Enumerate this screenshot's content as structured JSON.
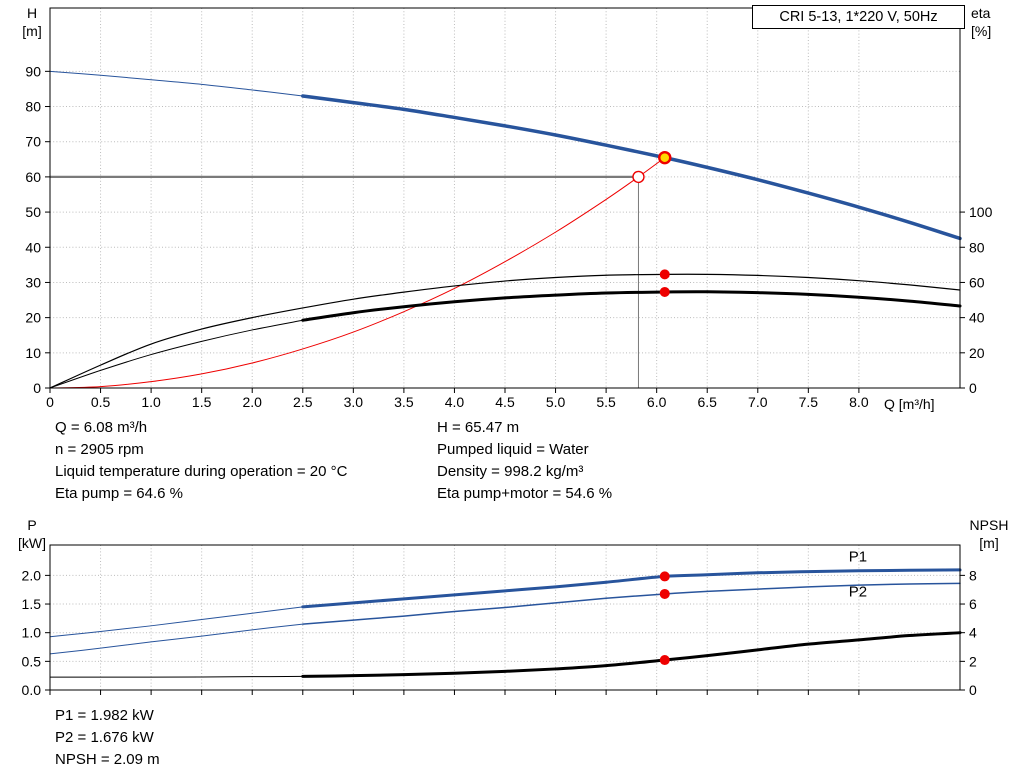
{
  "colors": {
    "blue": "#28549c",
    "red": "#ee0000",
    "yellow": "#ffd800",
    "grid": "#bcbcbc",
    "guide": "#7a7a7a",
    "axis": "#000000"
  },
  "chart_data": [
    {
      "type": "line",
      "title": "CRI 5-13, 1*220 V, 50Hz",
      "xlabel": "Q [m³/h]",
      "x": {
        "min": 0,
        "max": 9,
        "tick_values": [
          0,
          0.5,
          1,
          1.5,
          2,
          2.5,
          3,
          3.5,
          4,
          4.5,
          5,
          5.5,
          6,
          6.5,
          7,
          7.5,
          8
        ],
        "tick_labels": [
          "0",
          "0.5",
          "1.0",
          "1.5",
          "2.0",
          "2.5",
          "3.0",
          "3.5",
          "4.0",
          "4.5",
          "5.0",
          "5.5",
          "6.0",
          "6.5",
          "7.0",
          "7.5",
          "8.0"
        ]
      },
      "left_axis": {
        "label_top": "H",
        "label_unit": "[m]",
        "min": 0,
        "max": 108,
        "tick_values": [
          0,
          10,
          20,
          30,
          40,
          50,
          60,
          70,
          80,
          90
        ],
        "tick_labels": [
          "0",
          "10",
          "20",
          "30",
          "40",
          "50",
          "60",
          "70",
          "80",
          "90"
        ]
      },
      "right_axis": {
        "label_top": "eta",
        "label_unit": "[%]",
        "factor": 0.5,
        "tick_values": [
          0,
          20,
          40,
          60,
          80,
          100
        ],
        "tick_labels": [
          "0",
          "20",
          "40",
          "60",
          "80",
          "100"
        ]
      },
      "guides": [
        {
          "type": "hline",
          "y": 60,
          "x0": 0,
          "x1": 5.82
        },
        {
          "type": "vline",
          "x": 5.82,
          "y0": 0,
          "y1": 60
        }
      ],
      "series": [
        {
          "name": "qh-extension",
          "color": "#28549c",
          "width": 1,
          "axis": "left",
          "points": [
            [
              0,
              90
            ],
            [
              0.5,
              88.9
            ],
            [
              1,
              87.6
            ],
            [
              1.5,
              86.3
            ],
            [
              2,
              84.7
            ],
            [
              2.5,
              83
            ]
          ]
        },
        {
          "name": "qh-curve",
          "color": "#28549c",
          "width": 3.5,
          "axis": "left",
          "points": [
            [
              2.5,
              83
            ],
            [
              3,
              81.1
            ],
            [
              3.5,
              79.2
            ],
            [
              4,
              76.9
            ],
            [
              4.5,
              74.5
            ],
            [
              5,
              71.9
            ],
            [
              5.5,
              69
            ],
            [
              6.08,
              65.47
            ],
            [
              6.5,
              62.7
            ],
            [
              7,
              59.2
            ],
            [
              7.5,
              55.4
            ],
            [
              8,
              51.4
            ],
            [
              8.5,
              47.1
            ],
            [
              9,
              42.5
            ]
          ]
        },
        {
          "name": "system-curve",
          "color": "#ee0000",
          "width": 1,
          "axis": "left",
          "points": [
            [
              0,
              0
            ],
            [
              0.5,
              0.4
            ],
            [
              1,
              1.8
            ],
            [
              1.5,
              4
            ],
            [
              2,
              7.1
            ],
            [
              2.5,
              11.1
            ],
            [
              3,
              15.9
            ],
            [
              3.5,
              21.7
            ],
            [
              4,
              28.3
            ],
            [
              4.5,
              35.9
            ],
            [
              5,
              44.3
            ],
            [
              5.5,
              53.6
            ],
            [
              5.82,
              60
            ],
            [
              6.08,
              65.47
            ]
          ]
        },
        {
          "name": "eta-pump-curve",
          "color": "#000000",
          "width": 1.2,
          "axis": "right",
          "points": [
            [
              0,
              0
            ],
            [
              0.5,
              13
            ],
            [
              1,
              25
            ],
            [
              1.5,
              33.5
            ],
            [
              2,
              40
            ],
            [
              2.5,
              45.5
            ],
            [
              3,
              50.5
            ],
            [
              3.5,
              54.5
            ],
            [
              4,
              58
            ],
            [
              4.5,
              60.8
            ],
            [
              5,
              62.8
            ],
            [
              5.5,
              64.1
            ],
            [
              6.08,
              64.6
            ],
            [
              6.5,
              64.6
            ],
            [
              7,
              64
            ],
            [
              7.5,
              62.8
            ],
            [
              8,
              61
            ],
            [
              8.5,
              58.6
            ],
            [
              9,
              55.7
            ]
          ]
        },
        {
          "name": "eta-pump-motor-extension",
          "color": "#000000",
          "width": 1,
          "axis": "right",
          "points": [
            [
              0,
              0
            ],
            [
              0.5,
              10
            ],
            [
              1,
              19
            ],
            [
              1.5,
              26.5
            ],
            [
              2,
              33
            ],
            [
              2.5,
              38.5
            ]
          ]
        },
        {
          "name": "eta-pump-motor-curve",
          "color": "#000000",
          "width": 3,
          "axis": "right",
          "points": [
            [
              2.5,
              38.5
            ],
            [
              3,
              42.8
            ],
            [
              3.5,
              46.2
            ],
            [
              4,
              49
            ],
            [
              4.5,
              51.2
            ],
            [
              5,
              52.8
            ],
            [
              5.5,
              54
            ],
            [
              6.08,
              54.6
            ],
            [
              6.5,
              54.7
            ],
            [
              7,
              54.2
            ],
            [
              7.5,
              53.2
            ],
            [
              8,
              51.6
            ],
            [
              8.5,
              49.4
            ],
            [
              9,
              46.6
            ]
          ]
        }
      ],
      "markers": [
        {
          "name": "requested-duty-marker",
          "x": 5.82,
          "y": 60,
          "axis": "left",
          "r": 5.5,
          "fill": "#ffffff",
          "stroke": "#ee0000",
          "sw": 1.4
        },
        {
          "name": "eta-pump-duty-marker",
          "x": 6.08,
          "y": 64.6,
          "axis": "right",
          "r": 4.5,
          "fill": "#ee0000",
          "stroke": "#ee0000",
          "sw": 1
        },
        {
          "name": "eta-pump-motor-duty-marker",
          "x": 6.08,
          "y": 54.6,
          "axis": "right",
          "r": 4.5,
          "fill": "#ee0000",
          "stroke": "#ee0000",
          "sw": 1
        },
        {
          "name": "duty-point-marker",
          "x": 6.08,
          "y": 65.47,
          "axis": "left",
          "r": 5.5,
          "fill": "#ffd800",
          "stroke": "#ee0000",
          "sw": 2.4
        }
      ],
      "labels": []
    },
    {
      "type": "line",
      "title": "",
      "xlabel": "",
      "x": {
        "min": 0,
        "max": 9,
        "tick_values": [
          0,
          0.5,
          1,
          1.5,
          2,
          2.5,
          3,
          3.5,
          4,
          4.5,
          5,
          5.5,
          6,
          6.5,
          7,
          7.5,
          8
        ],
        "tick_labels": []
      },
      "left_axis": {
        "label_top": "P",
        "label_unit": "[kW]",
        "min": 0,
        "max": 2.53,
        "tick_values": [
          0,
          0.5,
          1,
          1.5,
          2
        ],
        "tick_labels": [
          "0.0",
          "0.5",
          "1.0",
          "1.5",
          "2.0"
        ]
      },
      "right_axis": {
        "label_top": "NPSH",
        "label_unit": "[m]",
        "factor": 0.25,
        "tick_values": [
          0,
          2,
          4,
          6,
          8
        ],
        "tick_labels": [
          "0",
          "2",
          "4",
          "6",
          "8"
        ]
      },
      "guides": [],
      "series": [
        {
          "name": "p1-extension",
          "color": "#28549c",
          "width": 1,
          "axis": "left",
          "points": [
            [
              0,
              0.93
            ],
            [
              0.5,
              1.02
            ],
            [
              1,
              1.12
            ],
            [
              1.5,
              1.23
            ],
            [
              2,
              1.34
            ],
            [
              2.5,
              1.45
            ]
          ]
        },
        {
          "name": "p1-curve",
          "color": "#28549c",
          "width": 3,
          "axis": "left",
          "points": [
            [
              2.5,
              1.45
            ],
            [
              3,
              1.52
            ],
            [
              3.5,
              1.59
            ],
            [
              4,
              1.66
            ],
            [
              4.5,
              1.73
            ],
            [
              5,
              1.8
            ],
            [
              5.5,
              1.88
            ],
            [
              6.08,
              1.982
            ],
            [
              6.5,
              2.01
            ],
            [
              7,
              2.045
            ],
            [
              7.5,
              2.065
            ],
            [
              8,
              2.08
            ],
            [
              8.5,
              2.09
            ],
            [
              9,
              2.095
            ]
          ]
        },
        {
          "name": "p2-extension",
          "color": "#28549c",
          "width": 1,
          "axis": "left",
          "points": [
            [
              0,
              0.63
            ],
            [
              0.5,
              0.73
            ],
            [
              1,
              0.84
            ],
            [
              1.5,
              0.94
            ],
            [
              2,
              1.05
            ],
            [
              2.5,
              1.15
            ]
          ]
        },
        {
          "name": "p2-curve",
          "color": "#28549c",
          "width": 1.5,
          "axis": "left",
          "points": [
            [
              2.5,
              1.15
            ],
            [
              3,
              1.22
            ],
            [
              3.5,
              1.29
            ],
            [
              4,
              1.37
            ],
            [
              4.5,
              1.44
            ],
            [
              5,
              1.52
            ],
            [
              5.5,
              1.6
            ],
            [
              6.08,
              1.676
            ],
            [
              6.5,
              1.72
            ],
            [
              7,
              1.76
            ],
            [
              7.5,
              1.8
            ],
            [
              8,
              1.83
            ],
            [
              8.5,
              1.85
            ],
            [
              9,
              1.86
            ]
          ]
        },
        {
          "name": "npsh-extension",
          "color": "#000000",
          "width": 1,
          "axis": "right",
          "points": [
            [
              0,
              0.9
            ],
            [
              0.5,
              0.9
            ],
            [
              1,
              0.9
            ],
            [
              1.5,
              0.91
            ],
            [
              2,
              0.93
            ],
            [
              2.5,
              0.95
            ]
          ]
        },
        {
          "name": "npsh-curve",
          "color": "#000000",
          "width": 3,
          "axis": "right",
          "points": [
            [
              2.5,
              0.95
            ],
            [
              3,
              1
            ],
            [
              3.5,
              1.07
            ],
            [
              4,
              1.17
            ],
            [
              4.5,
              1.3
            ],
            [
              5,
              1.47
            ],
            [
              5.5,
              1.7
            ],
            [
              6.08,
              2.09
            ],
            [
              6.5,
              2.4
            ],
            [
              7,
              2.8
            ],
            [
              7.5,
              3.2
            ],
            [
              8,
              3.5
            ],
            [
              8.5,
              3.8
            ],
            [
              9,
              4
            ]
          ]
        }
      ],
      "markers": [
        {
          "name": "p1-duty-marker",
          "x": 6.08,
          "y": 1.982,
          "axis": "left",
          "r": 4.5,
          "fill": "#ee0000",
          "stroke": "#ee0000",
          "sw": 1
        },
        {
          "name": "p2-duty-marker",
          "x": 6.08,
          "y": 1.676,
          "axis": "left",
          "r": 4.5,
          "fill": "#ee0000",
          "stroke": "#ee0000",
          "sw": 1
        },
        {
          "name": "npsh-duty-marker",
          "x": 6.08,
          "y": 2.09,
          "axis": "right",
          "r": 4.5,
          "fill": "#ee0000",
          "stroke": "#ee0000",
          "sw": 1
        }
      ],
      "labels": [
        {
          "text": "P1",
          "x": 7.9,
          "y": 2.24,
          "color": "#28549c"
        },
        {
          "text": "P2",
          "x": 7.9,
          "y": 1.63,
          "color": "#28549c"
        }
      ]
    }
  ],
  "info_top": {
    "col1": [
      "Q = 6.08 m³/h",
      "n = 2905 rpm",
      "Liquid temperature during operation = 20 °C",
      "Eta pump = 64.6 %"
    ],
    "col2": [
      "H = 65.47 m",
      "Pumped liquid = Water",
      "Density = 998.2 kg/m³",
      "Eta pump+motor = 54.6 %"
    ]
  },
  "info_bottom": [
    "P1 = 1.982 kW",
    "P2 = 1.676 kW",
    "NPSH = 2.09 m"
  ]
}
